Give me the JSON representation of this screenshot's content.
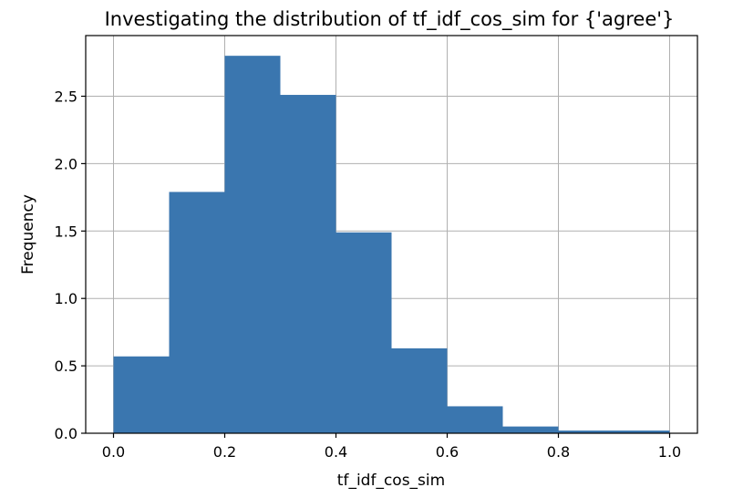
{
  "chart_data": {
    "type": "bar",
    "title": "Investigating the distribution of tf_idf_cos_sim for {'agree'}",
    "xlabel": "tf_idf_cos_sim",
    "ylabel": "Frequency",
    "bin_edges": [
      0.0,
      0.1,
      0.2,
      0.3,
      0.4,
      0.5,
      0.6,
      0.7,
      0.8,
      0.9,
      1.0
    ],
    "values": [
      0.57,
      1.79,
      2.8,
      2.51,
      1.49,
      0.63,
      0.2,
      0.05,
      0.02,
      0.02
    ],
    "xlim": [
      -0.05,
      1.05
    ],
    "ylim": [
      0,
      2.95
    ],
    "xticks": [
      0.0,
      0.2,
      0.4,
      0.6,
      0.8,
      1.0
    ],
    "xtick_labels": [
      "0.0",
      "0.2",
      "0.4",
      "0.6",
      "0.8",
      "1.0"
    ],
    "yticks": [
      0.0,
      0.5,
      1.0,
      1.5,
      2.0,
      2.5
    ],
    "ytick_labels": [
      "0.0",
      "0.5",
      "1.0",
      "1.5",
      "2.0",
      "2.5"
    ],
    "grid": true,
    "color": "#3a76af"
  }
}
